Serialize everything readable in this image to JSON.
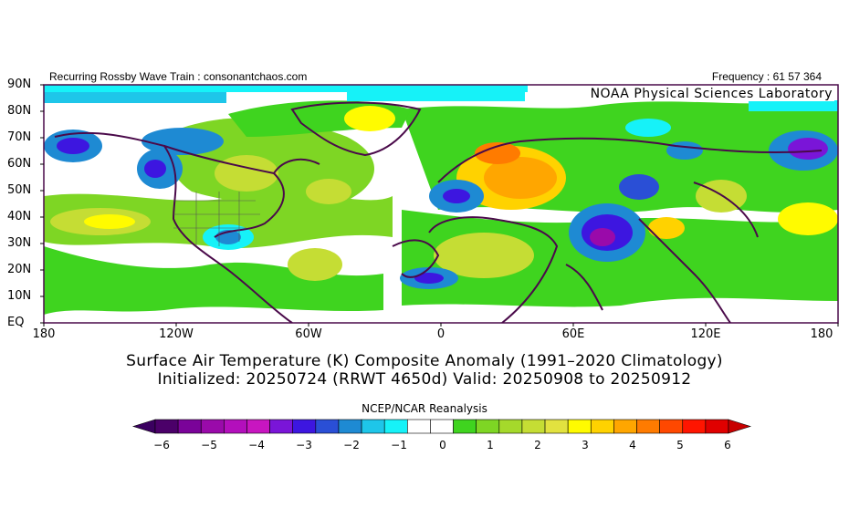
{
  "header": {
    "left": "Recurring Rossby Wave Train : consonantchaos.com",
    "right": "Frequency : 61 57 364"
  },
  "watermark": "NOAA Physical Sciences Laboratory",
  "lat_labels": [
    "90N",
    "80N",
    "70N",
    "60N",
    "50N",
    "40N",
    "30N",
    "20N",
    "10N",
    "EQ"
  ],
  "lon_labels": [
    "180",
    "120W",
    "60W",
    "0",
    "60E",
    "120E",
    "180"
  ],
  "title": {
    "line1": "Surface Air Temperature (K) Composite Anomaly (1991–2020 Climatology)",
    "line2": "Initialized: 20250724 (RRWT 4650d) Valid: 20250908 to 20250912"
  },
  "colorbar": {
    "title": "NCEP/NCAR Reanalysis",
    "tick_labels": [
      "−6",
      "−5",
      "−4",
      "−3",
      "−2",
      "−1",
      "0",
      "1",
      "2",
      "3",
      "4",
      "5",
      "6"
    ],
    "colors": [
      "#4b0069",
      "#7a0399",
      "#9a0aaa",
      "#b30fbc",
      "#c816c0",
      "#7a15d8",
      "#3d16e0",
      "#2a4fd6",
      "#1e8ad3",
      "#1ec6e9",
      "#16f2f8",
      "#ffffff",
      "#ffffff",
      "#3fd41f",
      "#7ed624",
      "#a5d92b",
      "#c5dd34",
      "#e2e23f",
      "#fffb00",
      "#ffd200",
      "#ffa600",
      "#ff7b00",
      "#ff4800",
      "#ff1500",
      "#e00000"
    ],
    "under_color": "#3b0060",
    "over_color": "#c80000"
  }
}
